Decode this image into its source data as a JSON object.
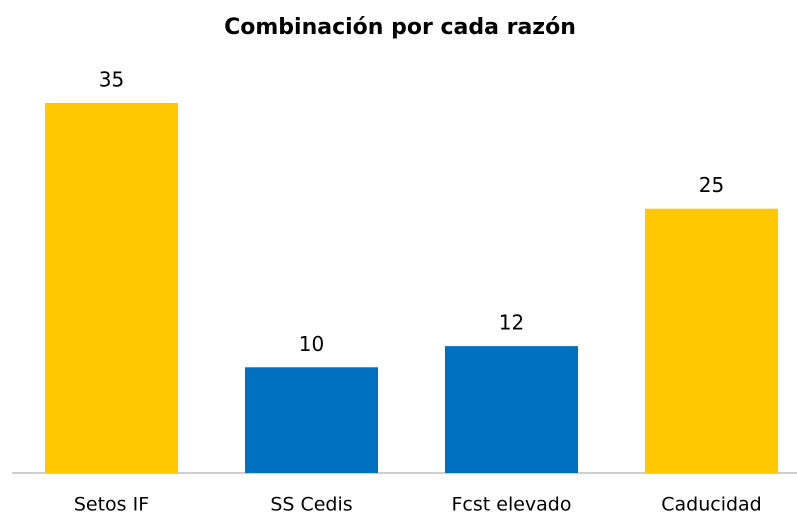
{
  "chart_data": {
    "type": "bar",
    "title": "Combinación  por cada razón",
    "categories": [
      "Setos IF",
      "SS Cedis",
      "Fcst elevado",
      "Caducidad"
    ],
    "values": [
      35,
      10,
      12,
      25
    ],
    "colors": [
      "#ffc800",
      "#0070c0",
      "#0070c0",
      "#ffc800"
    ]
  }
}
